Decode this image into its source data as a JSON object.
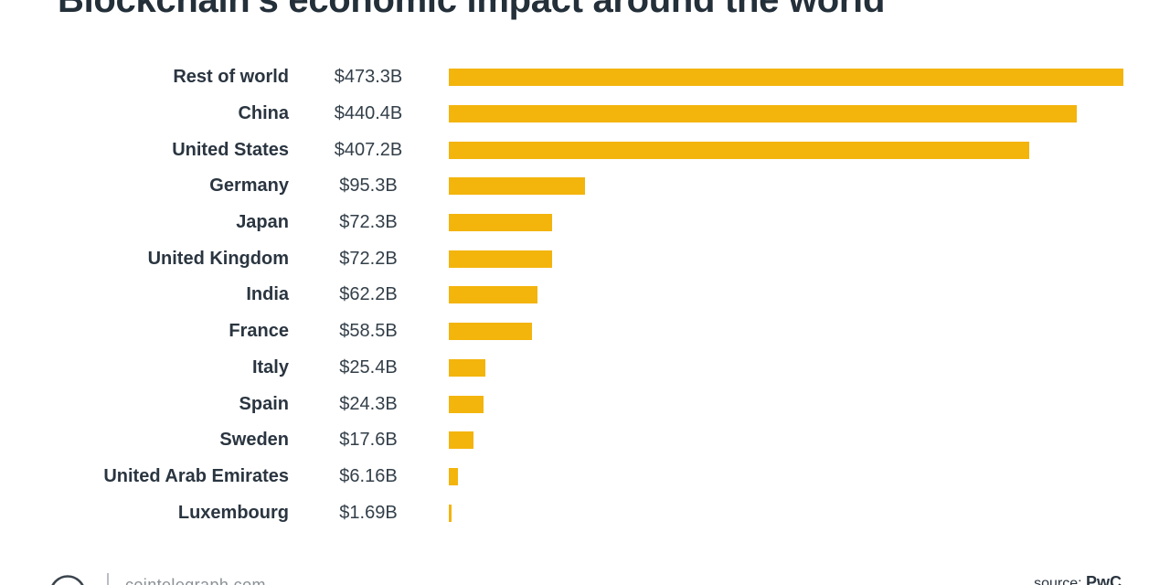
{
  "title": "Blockchain's economic impact around the world",
  "chart_data": {
    "type": "bar",
    "orientation": "horizontal",
    "title": "Blockchain's economic impact around the world",
    "categories": [
      "Rest of world",
      "China",
      "United States",
      "Germany",
      "Japan",
      "United Kingdom",
      "India",
      "France",
      "Italy",
      "Spain",
      "Sweden",
      "United Arab Emirates",
      "Luxembourg"
    ],
    "values": [
      473.3,
      440.4,
      407.2,
      95.3,
      72.3,
      72.2,
      62.2,
      58.5,
      25.4,
      24.3,
      17.6,
      6.16,
      1.69
    ],
    "value_labels": [
      "$473.3B",
      "$440.4B",
      "$407.2B",
      "$95.3B",
      "$72.3B",
      "$72.2B",
      "$62.2B",
      "$58.5B",
      "$25.4B",
      "$24.3B",
      "$17.6B",
      "$6.16B",
      "$1.69B"
    ],
    "xlabel": "",
    "ylabel": "",
    "xlim": [
      0,
      473.3
    ],
    "grid": false,
    "legend": "none",
    "bar_color": "#f3b40c",
    "label_color": "#2a3540",
    "units": "USD billions"
  },
  "footer": {
    "site": "cointelegraph.com",
    "source_label": "source:",
    "source_name": "PwC",
    "logo_icon": "cointelegraph-logo"
  },
  "colors": {
    "background": "#ffffff",
    "bar": "#f3b40c",
    "title_text": "#232f39",
    "label_text": "#2a3540",
    "footer_text": "#8b9196"
  }
}
